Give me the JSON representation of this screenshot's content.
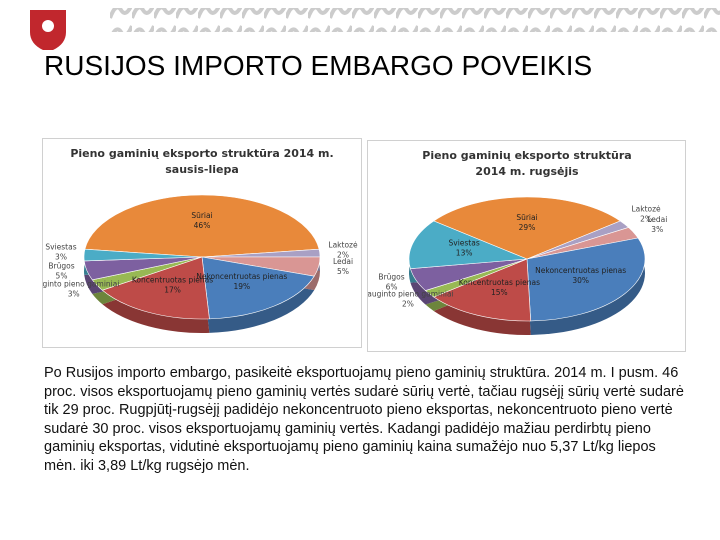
{
  "title": "RUSIJOS IMPORTO EMBARGO POVEIKIS",
  "text": "Po Rusijos importo embargo, pasikeitė eksportuojamų pieno gaminių struktūra. 2014 m. I pusm. 46 proc. visos eksportuojamų pieno gaminių vertės sudarė sūrių vertė, tačiau rugsėjį sūrių vertė sudarė tik 29 proc. Rugpjūtį-rugsėjį padidėjo nekoncentruoto pieno eksportas, nekoncentruoto pieno vertė sudarė 30 proc. visos eksportuojamų gaminių vertės. Kadangi padidėjo mažiau perdirbtų pieno gaminių eksportas, vidutinė eksportuojamų pieno gaminių kaina sumažėjo nuo 5,37 Lt/kg liepos mėn. iki 3,89 Lt/kg rugsėjo mėn.",
  "chart_data": [
    {
      "type": "pie",
      "title": "Pieno gaminių eksporto struktūra 2014 m.",
      "subtitle": "sausis-liepa",
      "categories": [
        "Sūriai",
        "Laktozė",
        "Ledai",
        "Nekoncentruotas pienas",
        "Koncentruotas pienas",
        "Rauginto pieno gaminiai",
        "Brūgos",
        "Sviestas"
      ],
      "values": [
        46,
        2,
        5,
        19,
        17,
        3,
        5,
        3
      ],
      "value_labels": [
        "46%",
        "2%",
        "5%",
        "19%",
        "17%",
        "3%",
        "5%",
        "3%"
      ],
      "colors": [
        "#e8893a",
        "#a9a0c4",
        "#d99694",
        "#4a7ebb",
        "#be4b48",
        "#98b954",
        "#7d60a0",
        "#4bacc6"
      ]
    },
    {
      "type": "pie",
      "title": "Pieno gaminių eksporto struktūra",
      "subtitle": "2014 m. rugsėjis",
      "categories": [
        "Sūriai",
        "Laktozė",
        "Ledai",
        "Nekoncentruotas pienas",
        "Koncentruotas pienas",
        "Rauginto pieno gaminiai",
        "Brūgos",
        "Sviestas"
      ],
      "values": [
        29,
        2,
        3,
        30,
        15,
        2,
        6,
        13
      ],
      "value_labels": [
        "29%",
        "2%",
        "3%",
        "30%",
        "15%",
        "2%",
        "6%",
        "13%"
      ],
      "colors": [
        "#e8893a",
        "#a9a0c4",
        "#d99694",
        "#4a7ebb",
        "#be4b48",
        "#98b954",
        "#7d60a0",
        "#4bacc6"
      ]
    }
  ]
}
